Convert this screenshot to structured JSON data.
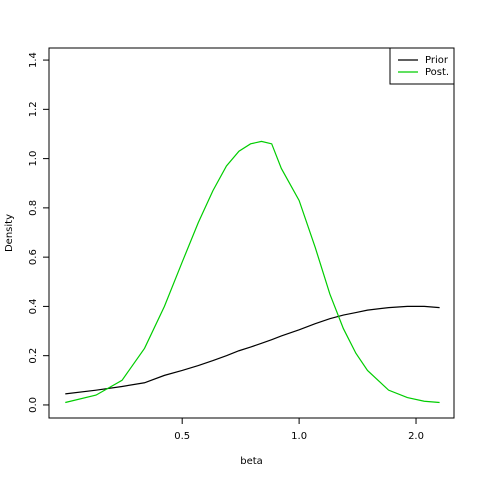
{
  "chart_data": {
    "type": "line",
    "xlabel": "beta",
    "ylabel": "Density",
    "x": [
      0.25,
      0.3,
      0.35,
      0.4,
      0.45,
      0.5,
      0.55,
      0.6,
      0.65,
      0.7,
      0.75,
      0.8,
      0.85,
      0.9,
      1.0,
      1.1,
      1.2,
      1.3,
      1.4,
      1.5,
      1.7,
      1.9,
      2.1,
      2.3
    ],
    "series": [
      {
        "name": "Prior",
        "color": "#000000",
        "values": [
          0.045,
          0.06,
          0.075,
          0.09,
          0.12,
          0.14,
          0.16,
          0.18,
          0.2,
          0.22,
          0.235,
          0.25,
          0.265,
          0.28,
          0.305,
          0.33,
          0.35,
          0.365,
          0.375,
          0.385,
          0.395,
          0.4,
          0.4,
          0.395
        ]
      },
      {
        "name": "Post.",
        "color": "#00cd00",
        "values": [
          0.01,
          0.04,
          0.1,
          0.23,
          0.4,
          0.58,
          0.74,
          0.87,
          0.97,
          1.03,
          1.06,
          1.07,
          1.06,
          0.96,
          0.83,
          0.64,
          0.45,
          0.31,
          0.21,
          0.14,
          0.06,
          0.03,
          0.015,
          0.01
        ]
      }
    ],
    "xlog": true,
    "xlim": [
      0.227,
      2.505
    ],
    "xticks": [
      0.5,
      {
        "value": 1.0,
        "label": "1.0"
      },
      {
        "value": 2.0,
        "label": "2.0"
      }
    ],
    "ylim": [
      -0.053,
      1.449
    ],
    "yticks": [
      {
        "value": 0,
        "label": "0.0"
      },
      0.2,
      0.4,
      0.6,
      0.8,
      {
        "value": 1.0,
        "label": "1.0"
      },
      1.2,
      1.4
    ],
    "legend": "top-right"
  }
}
